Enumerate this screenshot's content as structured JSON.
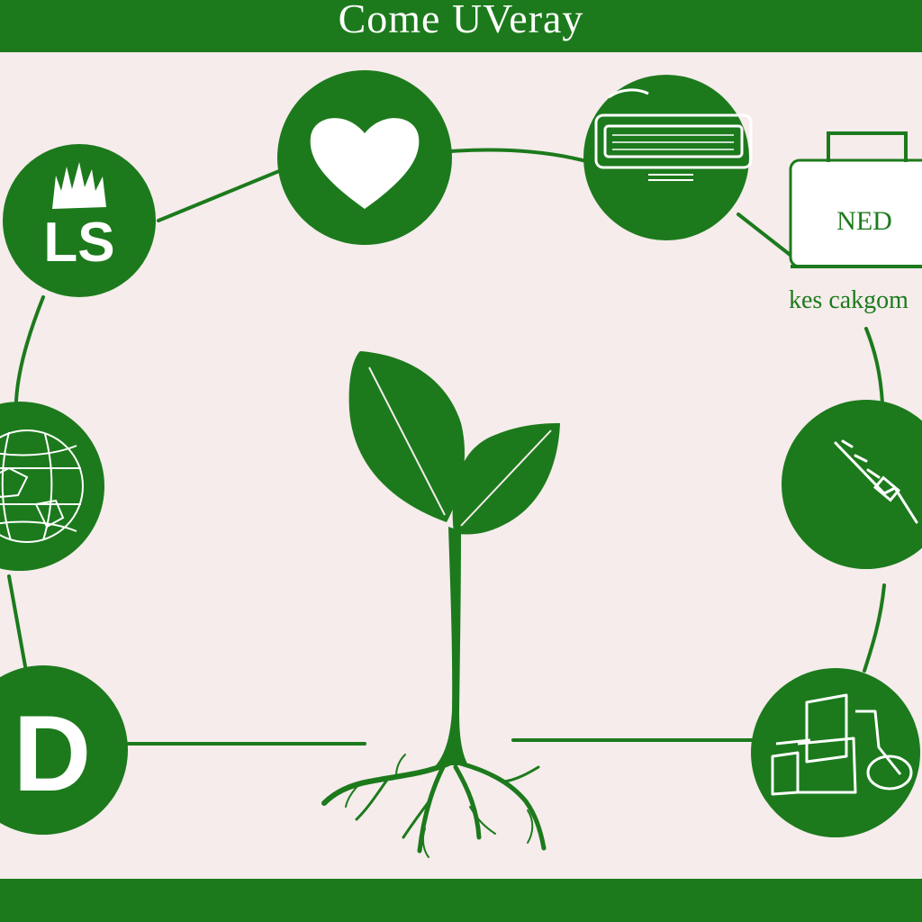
{
  "header": {
    "title": "Come UVeray"
  },
  "nodes": {
    "ls_badge": {
      "label": "LS"
    },
    "d_badge": {
      "label": "D"
    },
    "ned_box": {
      "label": "NED",
      "caption": "kes cakgom"
    }
  },
  "icons": {
    "top_left": "grass-badge-icon",
    "heart": "heart-icon",
    "top_right": "device-icon",
    "box": "briefcase-icon",
    "left_mid": "globe-map-icon",
    "right_mid": "tool-icon",
    "bottom_right": "machine-icon",
    "center": "sprout-icon"
  },
  "colors": {
    "green": "#1c7a1c",
    "background": "#f5eceb",
    "white": "#ffffff"
  }
}
